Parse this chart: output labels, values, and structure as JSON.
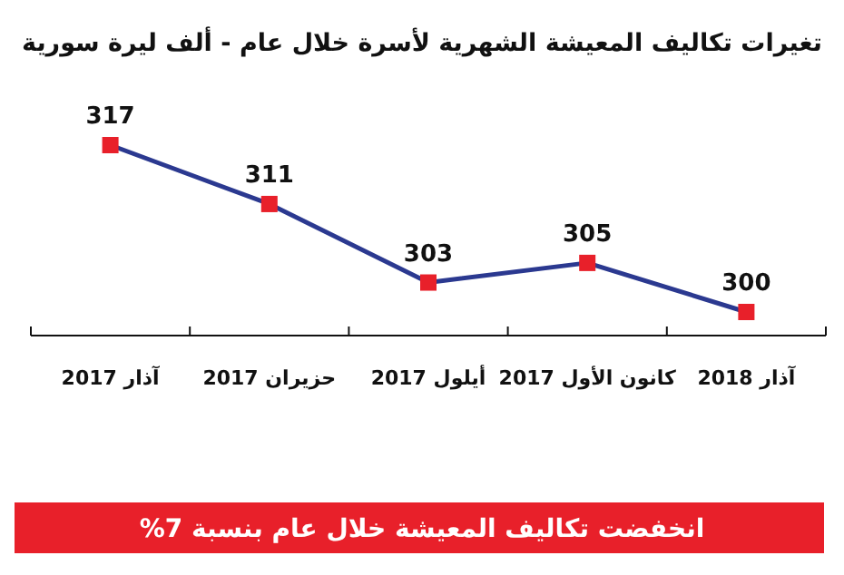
{
  "chart_data": {
    "type": "line",
    "title": "تغيرات تكاليف المعيشة الشهرية لأسرة خلال عام - ألف ليرة سورية",
    "categories": [
      "آذار 2017",
      "حزيران 2017",
      "أيلول 2017",
      "كانون الأول 2017",
      "آذار 2018"
    ],
    "series": [
      {
        "color": "#2b3990",
        "values": [
          317,
          311,
          303,
          305,
          300
        ]
      }
    ],
    "tick_labels": "x",
    "data_labels": true,
    "marker": "square",
    "line_style": "solid",
    "annotations": [
      "انخفضت تكاليف المعيشة خلال عام بنسبة 7%"
    ]
  }
}
